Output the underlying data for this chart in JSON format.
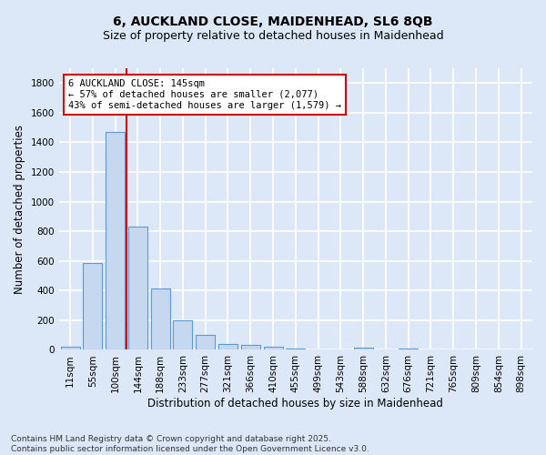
{
  "title_line1": "6, AUCKLAND CLOSE, MAIDENHEAD, SL6 8QB",
  "title_line2": "Size of property relative to detached houses in Maidenhead",
  "xlabel": "Distribution of detached houses by size in Maidenhead",
  "ylabel": "Number of detached properties",
  "categories": [
    "11sqm",
    "55sqm",
    "100sqm",
    "144sqm",
    "188sqm",
    "233sqm",
    "277sqm",
    "321sqm",
    "366sqm",
    "410sqm",
    "455sqm",
    "499sqm",
    "543sqm",
    "588sqm",
    "632sqm",
    "676sqm",
    "721sqm",
    "765sqm",
    "809sqm",
    "854sqm",
    "898sqm"
  ],
  "values": [
    20,
    585,
    1470,
    830,
    415,
    200,
    100,
    38,
    32,
    20,
    8,
    0,
    0,
    15,
    0,
    10,
    0,
    0,
    0,
    0,
    0
  ],
  "bar_color": "#c5d8f0",
  "bar_edgecolor": "#5b9bd5",
  "background_color": "#dce8f8",
  "fig_background_color": "#dce8f8",
  "grid_color": "#ffffff",
  "annotation_text": "6 AUCKLAND CLOSE: 145sqm\n← 57% of detached houses are smaller (2,077)\n43% of semi-detached houses are larger (1,579) →",
  "vline_x_index": 2.5,
  "vline_color": "#cc0000",
  "annotation_box_color": "#cc0000",
  "ylim": [
    0,
    1900
  ],
  "yticks": [
    0,
    200,
    400,
    600,
    800,
    1000,
    1200,
    1400,
    1600,
    1800
  ],
  "footnote": "Contains HM Land Registry data © Crown copyright and database right 2025.\nContains public sector information licensed under the Open Government Licence v3.0.",
  "title_fontsize": 10,
  "subtitle_fontsize": 9,
  "xlabel_fontsize": 8.5,
  "ylabel_fontsize": 8.5,
  "tick_fontsize": 7.5,
  "annotation_fontsize": 7.5,
  "footnote_fontsize": 6.5
}
